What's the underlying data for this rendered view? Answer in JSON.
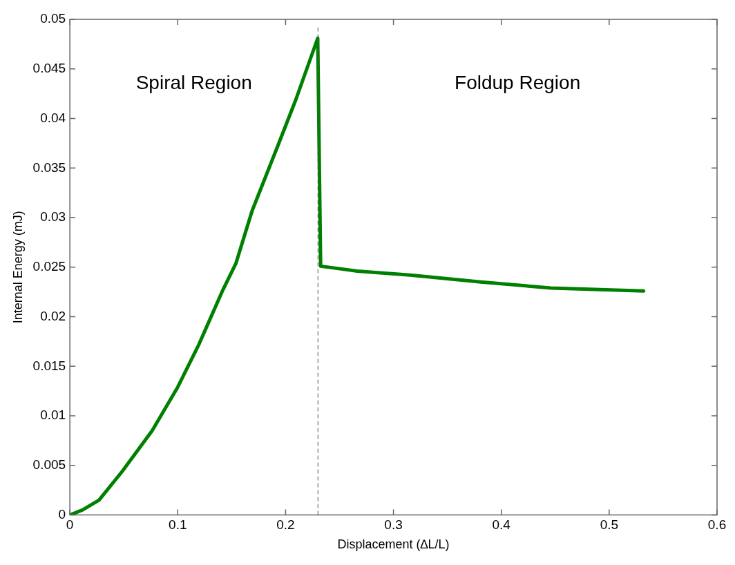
{
  "chart_data": {
    "type": "line",
    "xlabel": "Displacement (∆L/L)",
    "ylabel": "Internal Energy (mJ)",
    "xlim": [
      0,
      0.6
    ],
    "xticks": [
      0,
      0.1,
      0.2,
      0.3,
      0.4,
      0.5,
      0.6
    ],
    "ylim": [
      0,
      0.05
    ],
    "yticks": [
      0,
      0.005,
      0.01,
      0.015,
      0.02,
      0.025,
      0.03,
      0.035,
      0.04,
      0.045,
      0.05
    ],
    "grid": false,
    "legend": false,
    "marker": "none",
    "line_style": "solid",
    "series": [
      {
        "color": "#008000",
        "x": [
          0,
          0.0116,
          0.027,
          0.0485,
          0.0763,
          0.1,
          0.1196,
          0.141,
          0.154,
          0.169,
          0.193,
          0.2095,
          0.2298,
          0.2325,
          0.2664,
          0.3155,
          0.381,
          0.446,
          0.532
        ],
        "values": [
          0,
          0.0005,
          0.0015,
          0.0044,
          0.0085,
          0.0129,
          0.0172,
          0.0225,
          0.0254,
          0.0307,
          0.0373,
          0.0419,
          0.0481,
          0.0251,
          0.0246,
          0.0242,
          0.0235,
          0.0229,
          0.0226
        ]
      }
    ],
    "ref_lines": [
      {
        "axis": "x",
        "value": 0.23,
        "color": "#555555",
        "line_style": "dashed"
      }
    ],
    "annotations": [
      "Spiral Region",
      "Foldup Region"
    ]
  }
}
